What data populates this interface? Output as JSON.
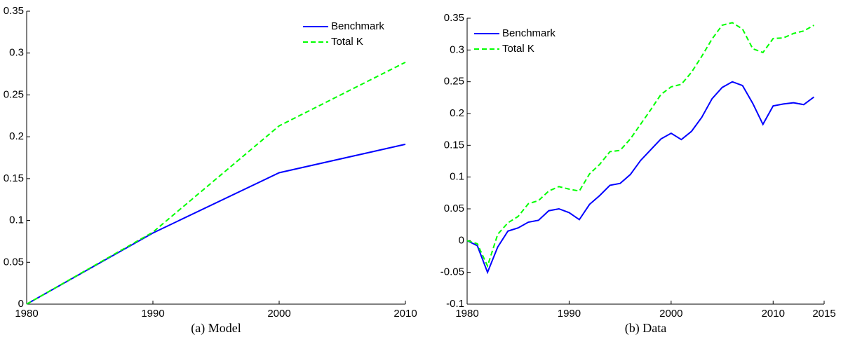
{
  "chart_data": [
    {
      "type": "line",
      "caption": "(a) Model",
      "x": [
        1980,
        1990,
        2000,
        2010
      ],
      "series": [
        {
          "name": "Benchmark",
          "color": "#0000ff",
          "dash": "solid",
          "values": [
            0,
            0.085,
            0.157,
            0.191
          ]
        },
        {
          "name": "Total K",
          "color": "#00ff00",
          "dash": "dashed",
          "values": [
            0,
            0.086,
            0.213,
            0.289
          ]
        }
      ],
      "xlim": [
        1980,
        2010
      ],
      "xticks": [
        1980,
        1990,
        2000,
        2010
      ],
      "ylim": [
        0,
        0.35
      ],
      "yticks": [
        0,
        0.05,
        0.1,
        0.15,
        0.2,
        0.25,
        0.3,
        0.35
      ],
      "legend": "upper right"
    },
    {
      "type": "line",
      "caption": "(b) Data",
      "x": [
        1980,
        1981,
        1982,
        1983,
        1984,
        1985,
        1986,
        1987,
        1988,
        1989,
        1990,
        1991,
        1992,
        1993,
        1994,
        1995,
        1996,
        1997,
        1998,
        1999,
        2000,
        2001,
        2002,
        2003,
        2004,
        2005,
        2006,
        2007,
        2008,
        2009,
        2010,
        2011,
        2012,
        2013,
        2014
      ],
      "series": [
        {
          "name": "Benchmark",
          "color": "#0000ff",
          "dash": "solid",
          "values": [
            0,
            -0.008,
            -0.05,
            -0.01,
            0.015,
            0.02,
            0.029,
            0.032,
            0.047,
            0.05,
            0.044,
            0.033,
            0.057,
            0.071,
            0.087,
            0.09,
            0.104,
            0.126,
            0.143,
            0.16,
            0.169,
            0.159,
            0.172,
            0.194,
            0.223,
            0.241,
            0.25,
            0.244,
            0.216,
            0.183,
            0.212,
            0.215,
            0.217,
            0.214,
            0.226
          ]
        },
        {
          "name": "Total K",
          "color": "#00ff00",
          "dash": "dashed",
          "values": [
            0,
            -0.005,
            -0.04,
            0.01,
            0.028,
            0.038,
            0.058,
            0.063,
            0.078,
            0.085,
            0.081,
            0.078,
            0.105,
            0.12,
            0.14,
            0.142,
            0.16,
            0.183,
            0.206,
            0.23,
            0.242,
            0.246,
            0.265,
            0.29,
            0.317,
            0.339,
            0.343,
            0.333,
            0.302,
            0.296,
            0.318,
            0.319,
            0.326,
            0.33,
            0.339
          ]
        }
      ],
      "xlim": [
        1980,
        2015
      ],
      "xticks": [
        1980,
        1990,
        2000,
        2010,
        2015
      ],
      "ylim": [
        -0.1,
        0.35
      ],
      "yticks": [
        -0.1,
        -0.05,
        0,
        0.05,
        0.1,
        0.15,
        0.2,
        0.25,
        0.3,
        0.35
      ],
      "legend": "upper left"
    }
  ]
}
